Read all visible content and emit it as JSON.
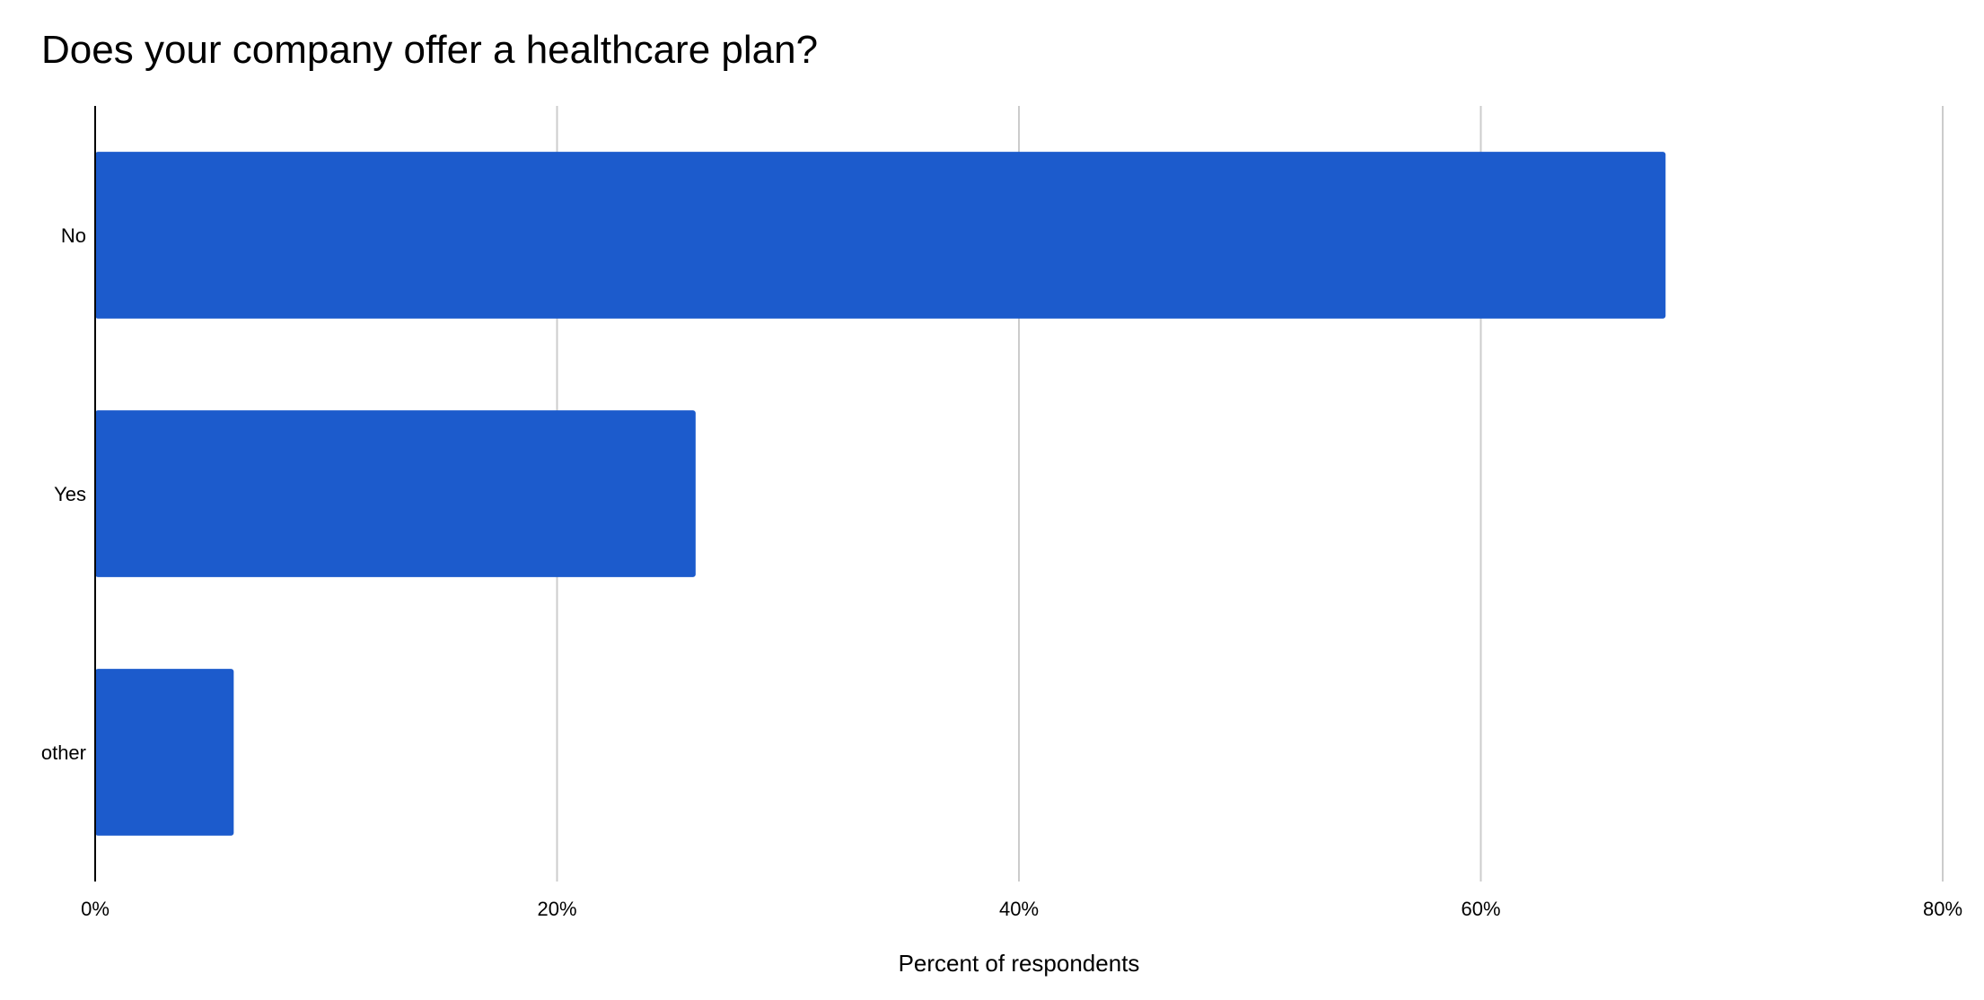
{
  "chart_data": {
    "type": "bar",
    "orientation": "horizontal",
    "title": "Does your company offer a healthcare plan?",
    "xlabel": "Percent of respondents",
    "ylabel": "",
    "categories": [
      "No",
      "Yes",
      "other"
    ],
    "values": [
      68,
      26,
      6
    ],
    "xlim": [
      0,
      80
    ],
    "x_ticks": [
      0,
      20,
      40,
      60,
      80
    ],
    "x_tick_labels": [
      "0%",
      "20%",
      "40%",
      "60%",
      "80%"
    ],
    "grid": true,
    "legend": "none",
    "colors": {
      "bar": "#1c5bcc",
      "grid": "#cccccc",
      "axis": "#000000"
    }
  }
}
